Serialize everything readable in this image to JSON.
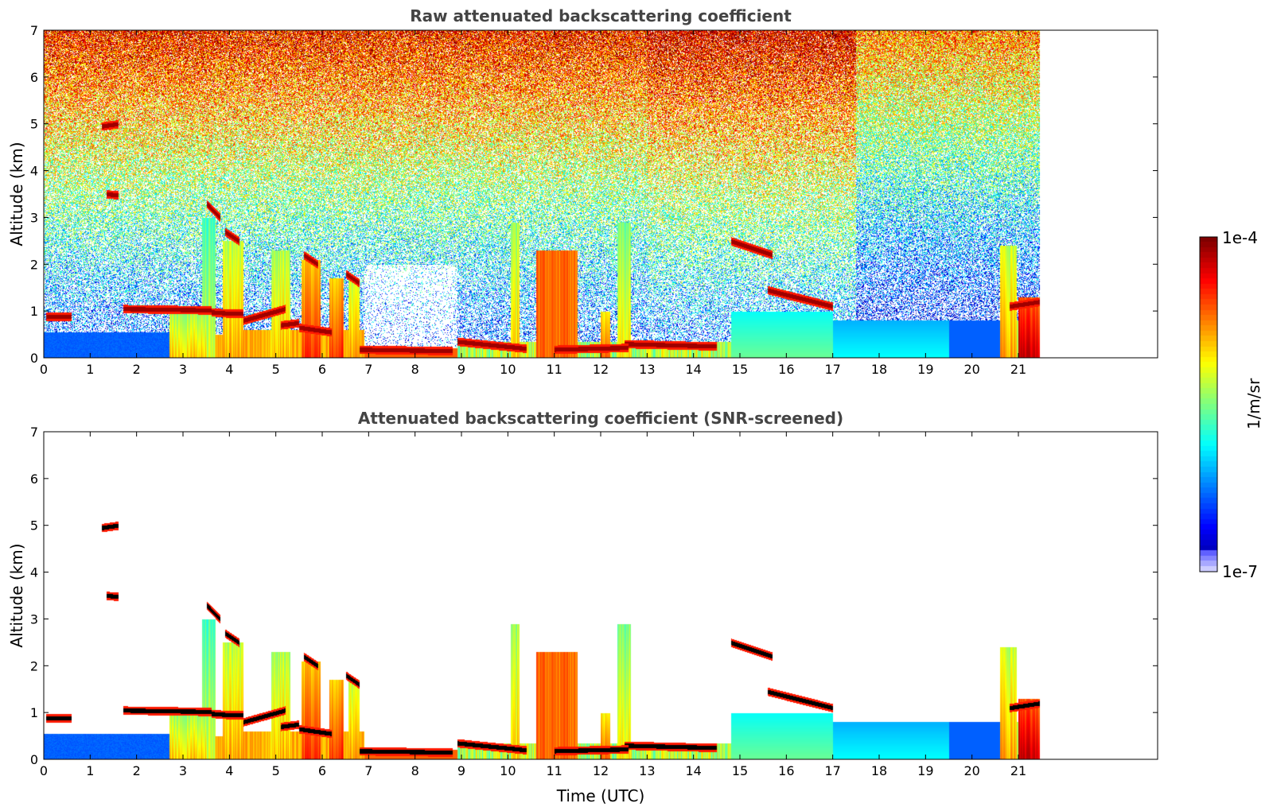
{
  "chart_data": [
    {
      "type": "heatmap",
      "title": "Raw attenuated backscattering coefficient",
      "xlabel": "",
      "ylabel": "Altitude (km)",
      "xlim": [
        0,
        24
      ],
      "ylim": [
        0,
        7
      ],
      "xticks": [
        "0",
        "1",
        "2",
        "3",
        "4",
        "5",
        "6",
        "7",
        "8",
        "9",
        "10",
        "11",
        "12",
        "13",
        "14",
        "15",
        "16",
        "17",
        "18",
        "19",
        "20",
        "21"
      ],
      "yticks": [
        "0",
        "1",
        "2",
        "3",
        "4",
        "5",
        "6",
        "7"
      ],
      "data_end_hour": 21.45,
      "screened": false
    },
    {
      "type": "heatmap",
      "title": "Attenuated backscattering coefficient (SNR-screened)",
      "xlabel": "Time (UTC)",
      "ylabel": "Altitude (km)",
      "xlim": [
        0,
        24
      ],
      "ylim": [
        0,
        7
      ],
      "xticks": [
        "0",
        "1",
        "2",
        "3",
        "4",
        "5",
        "6",
        "7",
        "8",
        "9",
        "10",
        "11",
        "12",
        "13",
        "14",
        "15",
        "16",
        "17",
        "18",
        "19",
        "20",
        "21"
      ],
      "yticks": [
        "0",
        "1",
        "2",
        "3",
        "4",
        "5",
        "6",
        "7"
      ],
      "data_end_hour": 21.45,
      "screened": true
    }
  ],
  "colorbar": {
    "label": "1/m/sr",
    "max_label": "1e-4",
    "min_label": "1e-7",
    "scale": "log",
    "colormap": "jet"
  }
}
